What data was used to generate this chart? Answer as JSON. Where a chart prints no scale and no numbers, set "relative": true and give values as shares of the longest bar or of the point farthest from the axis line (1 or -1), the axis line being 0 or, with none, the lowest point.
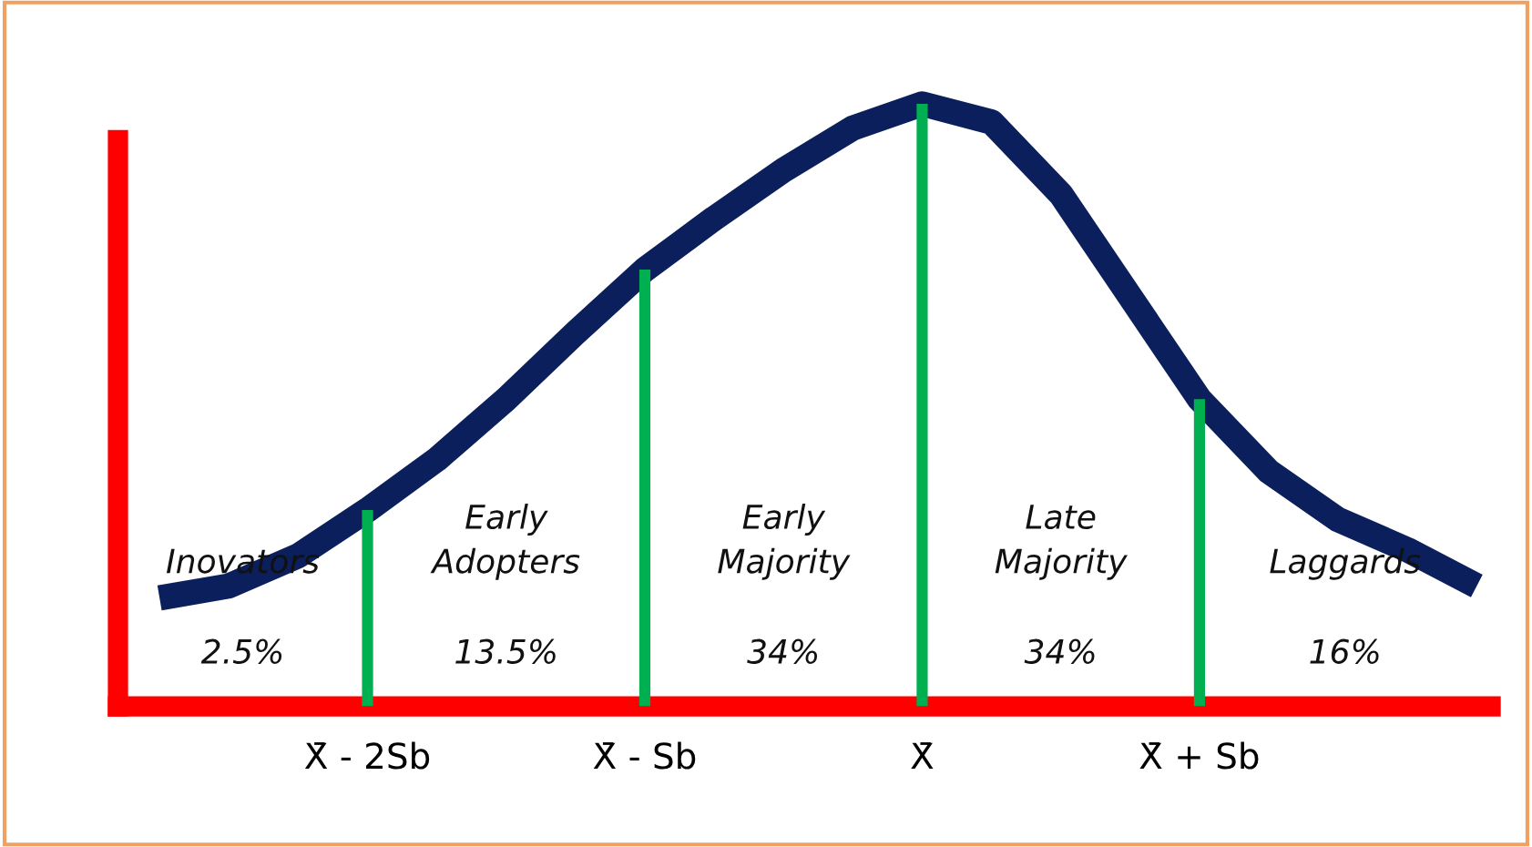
{
  "chart_data": {
    "type": "line",
    "relative": true,
    "categories": [
      null,
      null,
      null,
      "X̄ - 2Sb",
      null,
      null,
      null,
      "X̄ - Sb",
      null,
      null,
      null,
      "X̄",
      null,
      null,
      null,
      "X̄ + Sb",
      null,
      null,
      null,
      null
    ],
    "series": [
      {
        "type": "bar",
        "color": "#00b050",
        "values": [
          null,
          null,
          null,
          0.326,
          null,
          null,
          null,
          0.725,
          null,
          null,
          null,
          1,
          null,
          null,
          null,
          0.51,
          null,
          null,
          null,
          null
        ]
      },
      {
        "color": "#0a1f5c",
        "values": [
          0.18,
          0.2,
          0.25,
          0.326,
          0.41,
          0.51,
          0.62,
          0.725,
          0.81,
          0.89,
          0.96,
          1,
          0.97,
          0.85,
          0.68,
          0.51,
          0.39,
          0.31,
          0.26,
          0.2
        ]
      }
    ],
    "annotations": [
      "Inovators",
      "2.5%",
      "Early\nAdopters",
      "13.5%",
      "Early\nMajority",
      "34%",
      "Late\nMajority",
      "34%",
      "Laggards",
      "16%"
    ],
    "grid": false,
    "legend": false,
    "marker": "none",
    "line_style": "solid"
  }
}
